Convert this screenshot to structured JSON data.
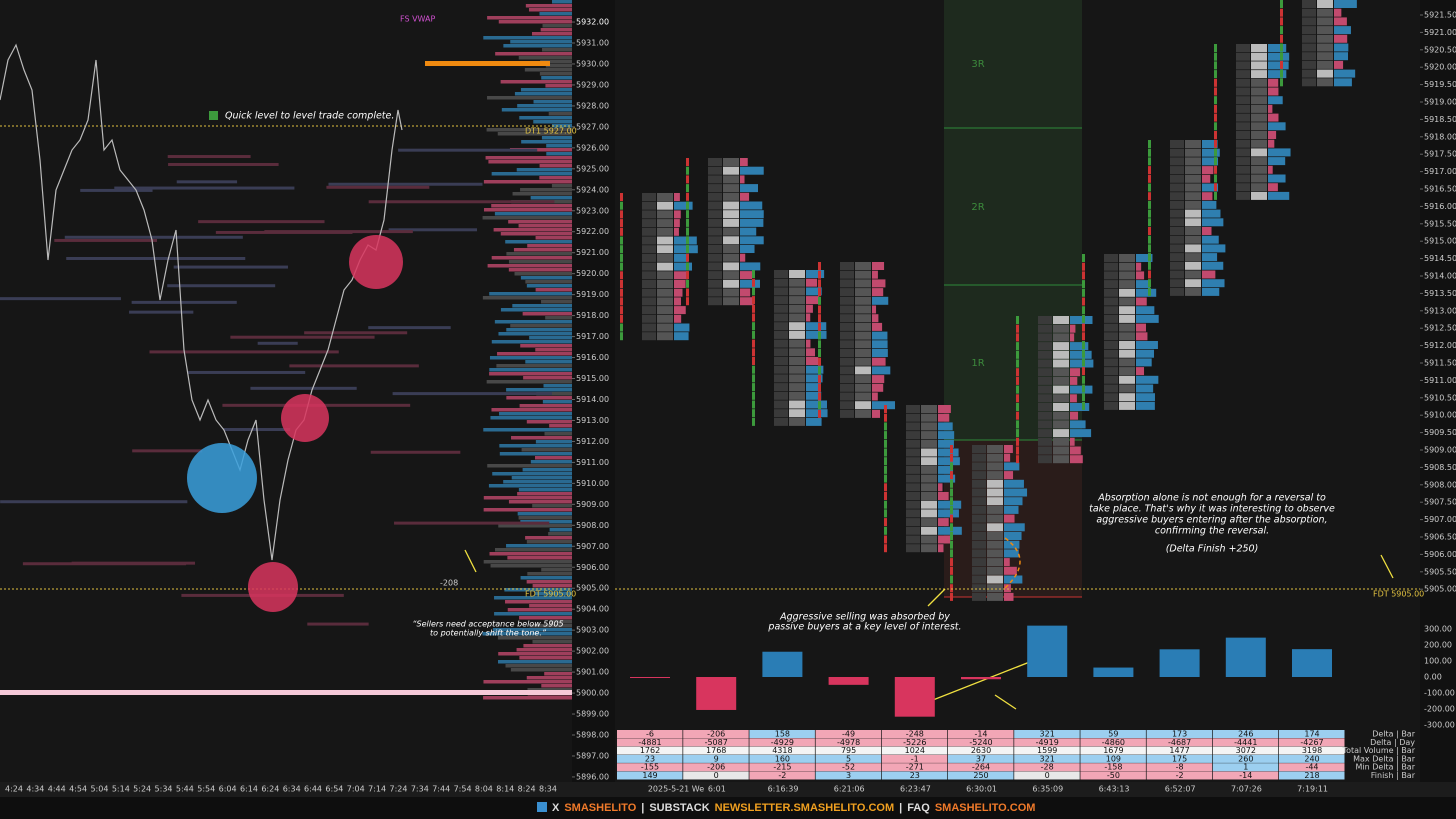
{
  "left_chart": {
    "annotation": "Quick level to level trade complete.",
    "vwap_label": "FS VWAP",
    "dt1_label": "DT1  5927.00",
    "fdt_label": "FDT  5905.00",
    "delta_label": "-208",
    "quote": [
      "“Sellers need acceptance below 5905",
      "to potentially shift the tone.”"
    ],
    "price_axis": [
      {
        "value": 5932,
        "label": "5932.00"
      },
      {
        "value": 5931,
        "label": "5931.00"
      },
      {
        "value": 5930,
        "label": "5930.00"
      },
      {
        "value": 5929,
        "label": "5929.00"
      },
      {
        "value": 5928,
        "label": "5928.00"
      },
      {
        "value": 5927,
        "label": "5927.00"
      },
      {
        "value": 5926,
        "label": "5926.00"
      },
      {
        "value": 5925,
        "label": "5925.00"
      },
      {
        "value": 5924,
        "label": "5924.00"
      },
      {
        "value": 5923,
        "label": "5923.00"
      },
      {
        "value": 5922,
        "label": "5922.00"
      },
      {
        "value": 5921,
        "label": "5921.00"
      },
      {
        "value": 5920,
        "label": "5920.00"
      },
      {
        "value": 5919,
        "label": "5919.00"
      },
      {
        "value": 5918,
        "label": "5918.00"
      },
      {
        "value": 5917,
        "label": "5917.00"
      },
      {
        "value": 5916,
        "label": "5916.00"
      },
      {
        "value": 5915,
        "label": "5915.00"
      },
      {
        "value": 5914,
        "label": "5914.00"
      },
      {
        "value": 5913,
        "label": "5913.00"
      },
      {
        "value": 5912,
        "label": "5912.00"
      },
      {
        "value": 5911,
        "label": "5911.00"
      },
      {
        "value": 5910,
        "label": "5910.00"
      },
      {
        "value": 5909,
        "label": "5909.00"
      },
      {
        "value": 5908,
        "label": "5908.00"
      },
      {
        "value": 5907,
        "label": "5907.00"
      },
      {
        "value": 5906,
        "label": "5906.00"
      },
      {
        "value": 5905,
        "label": "5905.00"
      },
      {
        "value": 5904,
        "label": "5904.00"
      },
      {
        "value": 5903,
        "label": "5903.00"
      },
      {
        "value": 5902,
        "label": "5902.00"
      },
      {
        "value": 5901,
        "label": "5901.00"
      },
      {
        "value": 5900,
        "label": "5900.00"
      },
      {
        "value": 5899,
        "label": "5899.00"
      },
      {
        "value": 5898,
        "label": "5898.00"
      },
      {
        "value": 5897,
        "label": "5897.00"
      },
      {
        "value": 5896,
        "label": "5896.00"
      }
    ],
    "time_axis": [
      "4:24",
      "4:34",
      "4:44",
      "4:54",
      "5:04",
      "5:14",
      "5:24",
      "5:34",
      "5:44",
      "5:54",
      "6:04",
      "6:14",
      "6:24",
      "6:34",
      "6:44",
      "6:54",
      "7:04",
      "7:14",
      "7:24",
      "7:34",
      "7:44",
      "7:54",
      "8:04",
      "8:14",
      "8:24",
      "8:34"
    ]
  },
  "right_chart": {
    "zones": [
      "3R",
      "2R",
      "1R"
    ],
    "fdt_label": "FDT  5905.00",
    "note_selling": [
      "Aggressive selling was absorbed by",
      "passive buyers at a key level of interest."
    ],
    "note_absorption": [
      "Absorption alone is not enough for a reversal to",
      "take place. That's why it was interesting to observe",
      "aggressive buyers entering after the absorption,",
      "confirming the reversal."
    ],
    "note_finish": "(Delta Finish +250)",
    "price_axis": [
      {
        "value": 5921.5,
        "label": "5921.50"
      },
      {
        "value": 5921,
        "label": "5921.00"
      },
      {
        "value": 5920.5,
        "label": "5920.50"
      },
      {
        "value": 5920,
        "label": "5920.00"
      },
      {
        "value": 5919.5,
        "label": "5919.50"
      },
      {
        "value": 5919,
        "label": "5919.00"
      },
      {
        "value": 5918.5,
        "label": "5918.50"
      },
      {
        "value": 5918,
        "label": "5918.00"
      },
      {
        "value": 5917.5,
        "label": "5917.50"
      },
      {
        "value": 5917,
        "label": "5917.00"
      },
      {
        "value": 5916.5,
        "label": "5916.50"
      },
      {
        "value": 5916,
        "label": "5916.00"
      },
      {
        "value": 5915.5,
        "label": "5915.50"
      },
      {
        "value": 5915,
        "label": "5915.00"
      },
      {
        "value": 5914.5,
        "label": "5914.50"
      },
      {
        "value": 5914,
        "label": "5914.00"
      },
      {
        "value": 5913.5,
        "label": "5913.50"
      },
      {
        "value": 5913,
        "label": "5913.00"
      },
      {
        "value": 5912.5,
        "label": "5912.50"
      },
      {
        "value": 5912,
        "label": "5912.00"
      },
      {
        "value": 5911.5,
        "label": "5911.50"
      },
      {
        "value": 5911,
        "label": "5911.00"
      },
      {
        "value": 5910.5,
        "label": "5910.50"
      },
      {
        "value": 5910,
        "label": "5910.00"
      },
      {
        "value": 5909.5,
        "label": "5909.50"
      },
      {
        "value": 5909,
        "label": "5909.00"
      },
      {
        "value": 5908.5,
        "label": "5908.50"
      },
      {
        "value": 5908,
        "label": "5908.00"
      },
      {
        "value": 5907.5,
        "label": "5907.50"
      },
      {
        "value": 5907,
        "label": "5907.00"
      },
      {
        "value": 5906.5,
        "label": "5906.50"
      },
      {
        "value": 5906,
        "label": "5906.00"
      },
      {
        "value": 5905.5,
        "label": "5905.50"
      },
      {
        "value": 5905,
        "label": "5905.00"
      }
    ],
    "delta_axis": [
      {
        "value": 300,
        "label": "300.00"
      },
      {
        "value": 200,
        "label": "200.00"
      },
      {
        "value": 100,
        "label": "100.00"
      },
      {
        "value": 0,
        "label": "0.00"
      },
      {
        "value": -100,
        "label": "-100.00"
      },
      {
        "value": -200,
        "label": "-200.00"
      },
      {
        "value": -300,
        "label": "-300.00"
      }
    ],
    "time_axis": [
      "2025-5-21 We",
      "6:01",
      "6:16:39",
      "6:21:06",
      "6:23:47",
      "6:30:01",
      "6:35:09",
      "6:43:13",
      "6:52:07",
      "7:07:26",
      "7:19:11"
    ],
    "table": {
      "row_labels": [
        "Delta | Bar",
        "Delta | Day",
        "Total Volume | Bar",
        "Max Delta | Bar",
        "Min Delta | Bar",
        "Finish | Bar"
      ],
      "rows": [
        [
          -6,
          -206,
          158,
          -49,
          -248,
          -14,
          321,
          59,
          173,
          246,
          174
        ],
        [
          -4881,
          -5087,
          -4929,
          -4978,
          -5226,
          -5240,
          -4919,
          -4860,
          -4687,
          -4441,
          -4267
        ],
        [
          1762,
          1768,
          4318,
          795,
          1024,
          2630,
          1599,
          1679,
          1477,
          3072,
          3198
        ],
        [
          23,
          9,
          160,
          5,
          -1,
          37,
          321,
          109,
          175,
          260,
          240
        ],
        [
          -155,
          -206,
          -215,
          -52,
          -271,
          -264,
          -28,
          -158,
          -8,
          1,
          -44
        ],
        [
          149,
          0,
          -2,
          3,
          23,
          250,
          0,
          -50,
          -2,
          -14,
          218
        ]
      ]
    }
  },
  "footer": [
    "X",
    "SMASHELITO",
    "|",
    "SUBSTACK",
    "NEWSLETTER.SMASHELITO.COM",
    "|",
    "FAQ",
    "SMASHELITO.COM"
  ]
}
